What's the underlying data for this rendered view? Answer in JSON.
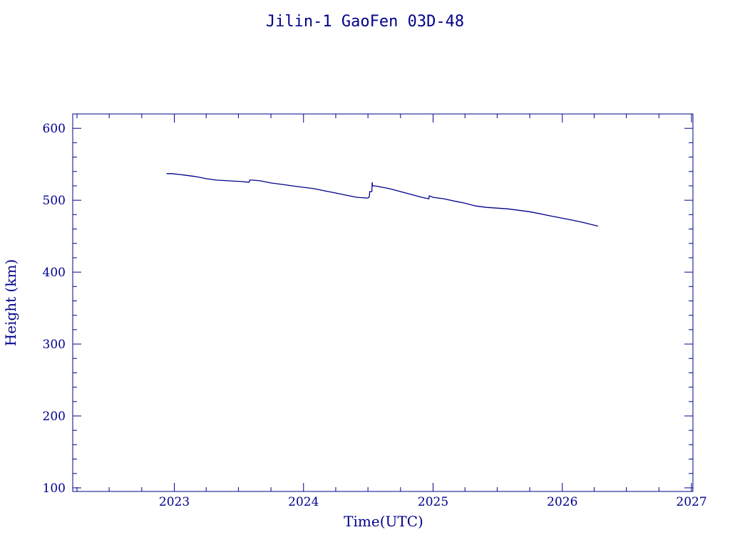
{
  "chart_data": {
    "type": "line",
    "title": "Jilin-1 GaoFen 03D-48",
    "xlabel": "Time(UTC)",
    "ylabel": "Height (km)",
    "xlim": [
      "2022-03-20",
      "2027-01-05"
    ],
    "ylim": [
      95,
      620
    ],
    "x_ticks": [
      "2023",
      "2024",
      "2025",
      "2026",
      "2027"
    ],
    "y_ticks": [
      100,
      200,
      300,
      400,
      500,
      600
    ],
    "grid": false,
    "line_color": "#00008b",
    "series": [
      {
        "x": [
          "2022-12-10",
          "2022-12-26",
          "2023-01-29",
          "2023-03-01",
          "2023-04-01",
          "2023-05-01",
          "2023-06-03",
          "2023-07-10",
          "2023-07-31",
          "2023-08-02",
          "2023-08-10",
          "2023-09-01",
          "2023-10-01",
          "2023-11-01",
          "2023-12-01",
          "2024-01-01",
          "2024-02-01",
          "2024-03-01",
          "2024-04-01",
          "2024-05-01",
          "2024-06-01",
          "2024-07-01",
          "2024-07-05",
          "2024-07-06",
          "2024-07-12",
          "2024-07-13",
          "2024-07-14",
          "2024-07-20",
          "2024-08-01",
          "2024-09-01",
          "2024-10-01",
          "2024-11-01",
          "2024-12-01",
          "2024-12-20",
          "2024-12-21",
          "2024-12-28",
          "2025-01-01",
          "2025-02-01",
          "2025-03-01",
          "2025-04-01",
          "2025-05-01",
          "2025-06-01",
          "2025-07-01",
          "2025-08-01",
          "2025-09-01",
          "2025-10-01",
          "2025-11-01",
          "2025-12-01",
          "2026-01-01",
          "2026-02-01",
          "2026-03-01",
          "2026-04-12"
        ],
        "y": [
          537,
          537,
          535,
          533,
          530,
          528,
          527,
          526,
          525,
          528,
          528,
          527,
          524,
          522,
          520,
          518,
          516,
          513,
          510,
          507,
          504,
          503,
          505,
          512,
          512,
          525,
          520,
          520,
          519,
          516,
          512,
          508,
          504,
          502,
          506,
          505,
          504,
          502,
          499,
          496,
          492,
          490,
          489,
          488,
          486,
          484,
          481,
          478,
          475,
          472,
          469,
          464
        ]
      }
    ]
  }
}
